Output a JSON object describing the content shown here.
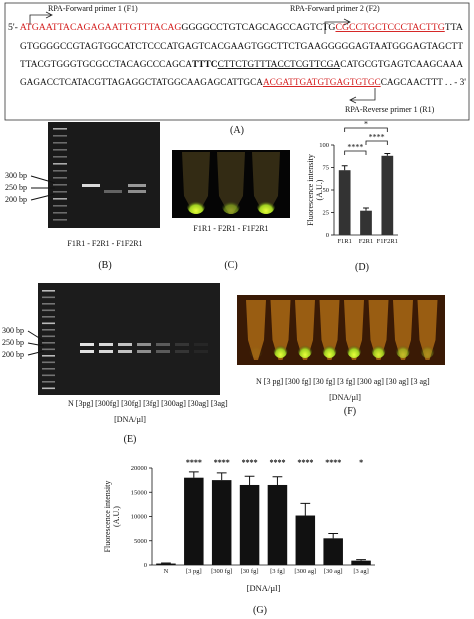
{
  "panel_a": {
    "primer_labels": [
      "RPA-Forward primer 1 (F1)",
      "RPA-Forward primer 2 (F2)",
      "RPA-Reverse primer 1 (R1)"
    ],
    "sequence": [
      [
        "5'- ",
        "ATGAATTACAGAGAATTGTTTACAG",
        "GGGGCCTGTCAGCAGCCAGTCTG",
        "CGCCTGCTCCCTACTTG",
        "TTA"
      ],
      [
        "GTGGGGCCGTAGTGGCATCTCCCATGAGTCACGAAGTGGCTTCTGAAGGGGGAGTAATGGGAGTAGCTT"
      ],
      [
        "TTACGTGGGTGCGCCTACAGCCCAGCA",
        "TTTC",
        "CTTCTGTTTACCTCGTTCGA",
        "CATGCGTGAGTCAAGCAAA"
      ],
      [
        "GAGACCTCATACGTTAGAGGCTATGGCAAGAGCATTGCA",
        "ACGATTGATGTGAGTGTGC",
        "CAGCAACTTT",
        " . . - 3'"
      ]
    ],
    "label": "(A)"
  },
  "panel_b": {
    "bp_labels": [
      "300 bp",
      "250 bp",
      "200 bp"
    ],
    "lanes": "F1R1 - F2R1 - F1F2R1",
    "label": "(B)"
  },
  "panel_c": {
    "lanes": "F1R1 - F2R1 - F1F2R1",
    "label": "(C)"
  },
  "panel_e": {
    "bp_labels": [
      "300 bp",
      "250 bp",
      "200 bp"
    ],
    "lanes": "N  [3pg] [300fg] [30fg] [3fg] [300ag] [30ag] [3ag]",
    "xlabel": "[DNA/µl]",
    "label": "(E)"
  },
  "panel_f": {
    "lanes": "N   [3 pg] [300 fg] [30 fg] [3 fg] [300 ag] [30 ag] [3 ag]",
    "xlabel": "[DNA/µl]",
    "label": "(F)"
  },
  "chart_data": [
    {
      "type": "bar",
      "panel_label": "(D)",
      "ylabel": [
        "Fluorescence intensity",
        "(A.U.)"
      ],
      "categories": [
        "F1R1",
        "F2R1",
        "F1F2R1"
      ],
      "values": [
        72,
        27,
        88
      ],
      "errors": [
        5,
        3,
        2.5
      ],
      "color": "#333333",
      "ylim": [
        0,
        100
      ],
      "yticks": [
        0,
        25,
        50,
        75,
        100
      ],
      "annotations": [
        "*",
        "****",
        "****"
      ]
    },
    {
      "type": "bar",
      "panel_label": "(G)",
      "ylabel": [
        "Fluorescence intensity",
        "(A.U.)"
      ],
      "xlabel": "[DNA/µl]",
      "categories": [
        "N",
        "[3 pg]",
        "[300 fg]",
        "[30 fg]",
        "[3 fg]",
        "[300 ag]",
        "[30 ag]",
        "[3 ag]"
      ],
      "values": [
        300,
        18000,
        17500,
        16500,
        16500,
        10200,
        5500,
        900
      ],
      "errors": [
        100,
        1200,
        1500,
        1800,
        1700,
        2500,
        1000,
        200
      ],
      "color": "#111111",
      "ylim": [
        0,
        20000
      ],
      "yticks": [
        0,
        5000,
        10000,
        15000,
        20000
      ],
      "annotations": [
        null,
        "****",
        "****",
        "****",
        "****",
        "****",
        "****",
        "*"
      ]
    }
  ]
}
